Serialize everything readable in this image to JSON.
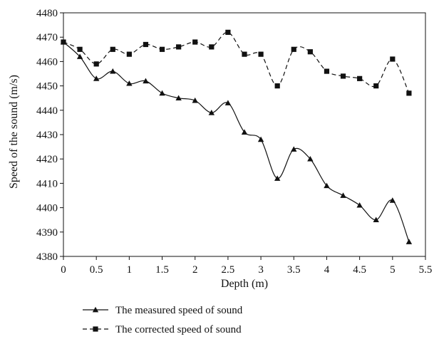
{
  "chart_data": {
    "type": "line",
    "title": "",
    "xlabel": "Depth (m)",
    "ylabel": "Speed of the sound (m/s)",
    "xlim": [
      0,
      5.5
    ],
    "ylim": [
      4380,
      4480
    ],
    "x_ticks": [
      "0",
      "0.5",
      "1",
      "1.5",
      "2",
      "2.5",
      "3",
      "3.5",
      "4",
      "4.5",
      "5",
      "5.5"
    ],
    "y_ticks": [
      "4380",
      "4390",
      "4400",
      "4410",
      "4420",
      "4430",
      "4440",
      "4450",
      "4460",
      "4470",
      "4480"
    ],
    "grid": false,
    "legend_position": "bottom",
    "x": [
      0,
      0.25,
      0.5,
      0.75,
      1,
      1.25,
      1.5,
      1.75,
      2,
      2.25,
      2.5,
      2.75,
      3,
      3.25,
      3.5,
      3.75,
      4,
      4.25,
      4.5,
      4.75,
      5,
      5.25
    ],
    "series": [
      {
        "name": "The measured speed of sound",
        "marker": "triangle",
        "line_style": "solid",
        "color": "#111111",
        "values": [
          4468,
          4462,
          4453,
          4456,
          4451,
          4452,
          4447,
          4445,
          4444,
          4439,
          4443,
          4431,
          4428,
          4412,
          4424,
          4420,
          4409,
          4405,
          4401,
          4395,
          4403,
          4386
        ]
      },
      {
        "name": "The corrected speed of sound",
        "marker": "square",
        "line_style": "dashed",
        "color": "#111111",
        "values": [
          4468,
          4465,
          4459,
          4465,
          4463,
          4467,
          4465,
          4466,
          4468,
          4466,
          4472,
          4463,
          4463,
          4450,
          4465,
          4464,
          4456,
          4454,
          4453,
          4450,
          4461,
          4447
        ]
      }
    ]
  }
}
